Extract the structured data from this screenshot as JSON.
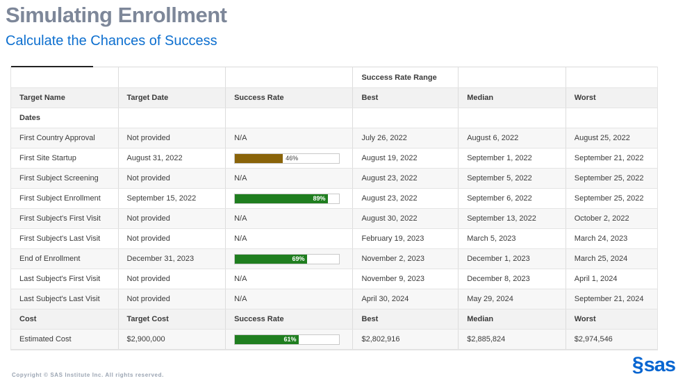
{
  "header": {
    "title": "Simulating Enrollment",
    "subtitle": "Calculate the Chances of Success"
  },
  "table": {
    "range_header": "Success Rate Range",
    "columns": [
      "Target Name",
      "Target Date",
      "Success Rate",
      "Best",
      "Median",
      "Worst"
    ],
    "section_label": "Dates",
    "rows": [
      {
        "name": "First Country Approval",
        "target_date": "Not provided",
        "rate": {
          "type": "na",
          "text": "N/A"
        },
        "best": "July 26, 2022",
        "median": "August 6, 2022",
        "worst": "August 25, 2022"
      },
      {
        "name": "First Site Startup",
        "target_date": "August 31, 2022",
        "rate": {
          "type": "bar",
          "percent": 46,
          "label": "46%",
          "color": "#8a640a",
          "label_position": "outside"
        },
        "best": "August 19, 2022",
        "median": "September 1, 2022",
        "worst": "September 21, 2022"
      },
      {
        "name": "First Subject Screening",
        "target_date": "Not provided",
        "rate": {
          "type": "na",
          "text": "N/A"
        },
        "best": "August 23, 2022",
        "median": "September 5, 2022",
        "worst": "September 25, 2022"
      },
      {
        "name": "First Subject Enrollment",
        "target_date": "September 15, 2022",
        "rate": {
          "type": "bar",
          "percent": 89,
          "label": "89%",
          "color": "#1f7e1f",
          "label_position": "inside"
        },
        "best": "August 23, 2022",
        "median": "September 6, 2022",
        "worst": "September 25, 2022"
      },
      {
        "name": "First Subject's First Visit",
        "target_date": "Not provided",
        "rate": {
          "type": "na",
          "text": "N/A"
        },
        "best": "August 30, 2022",
        "median": "September 13, 2022",
        "worst": "October 2, 2022"
      },
      {
        "name": "First Subject's Last Visit",
        "target_date": "Not provided",
        "rate": {
          "type": "na",
          "text": "N/A"
        },
        "best": "February 19, 2023",
        "median": "March 5, 2023",
        "worst": "March 24, 2023"
      },
      {
        "name": "End of Enrollment",
        "target_date": "December 31, 2023",
        "rate": {
          "type": "bar",
          "percent": 69,
          "label": "69%",
          "color": "#1f7e1f",
          "label_position": "inside"
        },
        "best": "November 2, 2023",
        "median": "December 1, 2023",
        "worst": "March 25, 2024"
      },
      {
        "name": "Last Subject's First Visit",
        "target_date": "Not provided",
        "rate": {
          "type": "na",
          "text": "N/A"
        },
        "best": "November 9, 2023",
        "median": "December 8, 2023",
        "worst": "April 1, 2024"
      },
      {
        "name": "Last Subject's Last Visit",
        "target_date": "Not provided",
        "rate": {
          "type": "na",
          "text": "N/A"
        },
        "best": "April 30, 2024",
        "median": "May 29, 2024",
        "worst": "September 21, 2024"
      }
    ],
    "cost_columns": [
      "Cost",
      "Target Cost",
      "Success Rate",
      "Best",
      "Median",
      "Worst"
    ],
    "cost_rows": [
      {
        "name": "Estimated Cost",
        "target_cost": "$2,900,000",
        "rate": {
          "type": "bar",
          "percent": 61,
          "label": "61%",
          "color": "#1f7e1f",
          "label_position": "inside"
        },
        "best": "$2,802,916",
        "median": "$2,885,824",
        "worst": "$2,974,546"
      }
    ]
  },
  "colors": {
    "title_gray": "#7d8799",
    "subtitle_blue": "#0d6fcf",
    "bar_green": "#1f7e1f",
    "bar_brown": "#8a640a",
    "sas_blue": "#0766d1"
  },
  "footer": {
    "copyright": "Copyright © SAS Institute Inc. All rights reserved.",
    "sas_swirl_icon": "§",
    "logo_text": "sas"
  }
}
